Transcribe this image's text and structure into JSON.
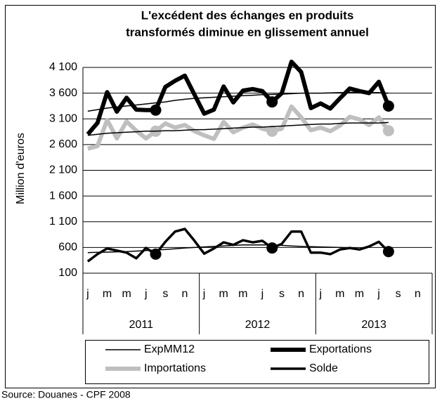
{
  "chart_data": {
    "type": "line",
    "title": [
      "L'excédent des échanges en produits",
      "transformés diminue en glissement annuel"
    ],
    "ylabel": "Million d'euros",
    "source": "Source: Douanes - CPF 2008",
    "categories": [
      "j",
      null,
      "m",
      null,
      "m",
      null,
      "j",
      null,
      "s",
      null,
      "n",
      null,
      "j",
      null,
      "m",
      null,
      "m",
      null,
      "j",
      null,
      "s",
      null,
      "n",
      null,
      "j",
      null,
      "m",
      null,
      "m",
      null,
      "j",
      null,
      "s",
      null,
      "n",
      null
    ],
    "years": [
      "2011",
      "2012",
      "2013"
    ],
    "ylim": [
      100,
      4100
    ],
    "yticks": [
      100,
      600,
      {
        "value": 1100,
        "label": "1 100"
      },
      {
        "value": 1600,
        "label": "1 600"
      },
      {
        "value": 2100,
        "label": "2 100"
      },
      {
        "value": 2600,
        "label": "2 600"
      },
      {
        "value": 3100,
        "label": "3 100"
      },
      {
        "value": 3600,
        "label": "3 600"
      },
      {
        "value": 4100,
        "label": "4 100"
      }
    ],
    "grid": true,
    "markers": [
      7,
      19,
      31
    ],
    "series": [
      {
        "name": "ExpMM12",
        "color": "#000000",
        "width": 1.5,
        "values": [
          3250,
          3280,
          3310,
          3330,
          3350,
          3370,
          3390,
          3410,
          3430,
          3460,
          3480,
          3500,
          3510,
          3520,
          3530,
          3540,
          3550,
          3560,
          3570,
          3575,
          3580,
          3590,
          3600,
          3600,
          3600,
          3605,
          3610,
          3615,
          3615,
          3610,
          3610,
          3600,
          null,
          null,
          null,
          null
        ]
      },
      {
        "name": "Exportations",
        "color": "#000000",
        "width": 6,
        "marked": true,
        "values": [
          2800,
          3020,
          3620,
          3240,
          3510,
          3280,
          3270,
          3270,
          3720,
          3840,
          3940,
          3570,
          3200,
          3280,
          3730,
          3420,
          3650,
          3680,
          3640,
          3430,
          3600,
          4210,
          4010,
          3310,
          3400,
          3300,
          3500,
          3690,
          3640,
          3600,
          3820,
          3350,
          null,
          null,
          null,
          null
        ]
      },
      {
        "name": "Importations",
        "color": "#bfbfbf",
        "width": 6,
        "marked": true,
        "values": [
          2520,
          2570,
          3080,
          2720,
          3050,
          2870,
          2720,
          2860,
          3010,
          2930,
          2980,
          2860,
          2780,
          2710,
          3040,
          2840,
          2930,
          2990,
          2910,
          2860,
          2910,
          3340,
          3130,
          2880,
          2930,
          2860,
          2970,
          3140,
          3090,
          2980,
          3130,
          2870,
          null,
          null,
          null,
          null
        ]
      },
      {
        "name": "Solde",
        "color": "#000000",
        "width": 3.5,
        "marked": true,
        "values": [
          330,
          470,
          580,
          540,
          500,
          390,
          590,
          470,
          710,
          910,
          960,
          730,
          480,
          580,
          700,
          650,
          740,
          700,
          730,
          590,
          670,
          910,
          910,
          500,
          500,
          470,
          560,
          590,
          560,
          620,
          710,
          520,
          null,
          null,
          null,
          null
        ]
      },
      {
        "color": "#000000",
        "width": 1.5,
        "values": [
          2780,
          2800,
          2820,
          2830,
          2840,
          2850,
          2860,
          2860,
          2870,
          2870,
          2880,
          2890,
          2890,
          2900,
          2910,
          2920,
          2930,
          2940,
          2940,
          2950,
          2960,
          2970,
          2980,
          2990,
          3000,
          3000,
          3010,
          3020,
          3020,
          3020,
          3020,
          3030,
          null,
          null,
          null,
          null
        ]
      },
      {
        "color": "#000000",
        "width": 1.5,
        "values": [
          500,
          505,
          510,
          515,
          520,
          530,
          540,
          550,
          560,
          575,
          590,
          600,
          610,
          620,
          630,
          640,
          650,
          650,
          650,
          650,
          640,
          630,
          620,
          615,
          610,
          605,
          600,
          595,
          null,
          null,
          null,
          null,
          null,
          null,
          null,
          null
        ]
      }
    ]
  }
}
